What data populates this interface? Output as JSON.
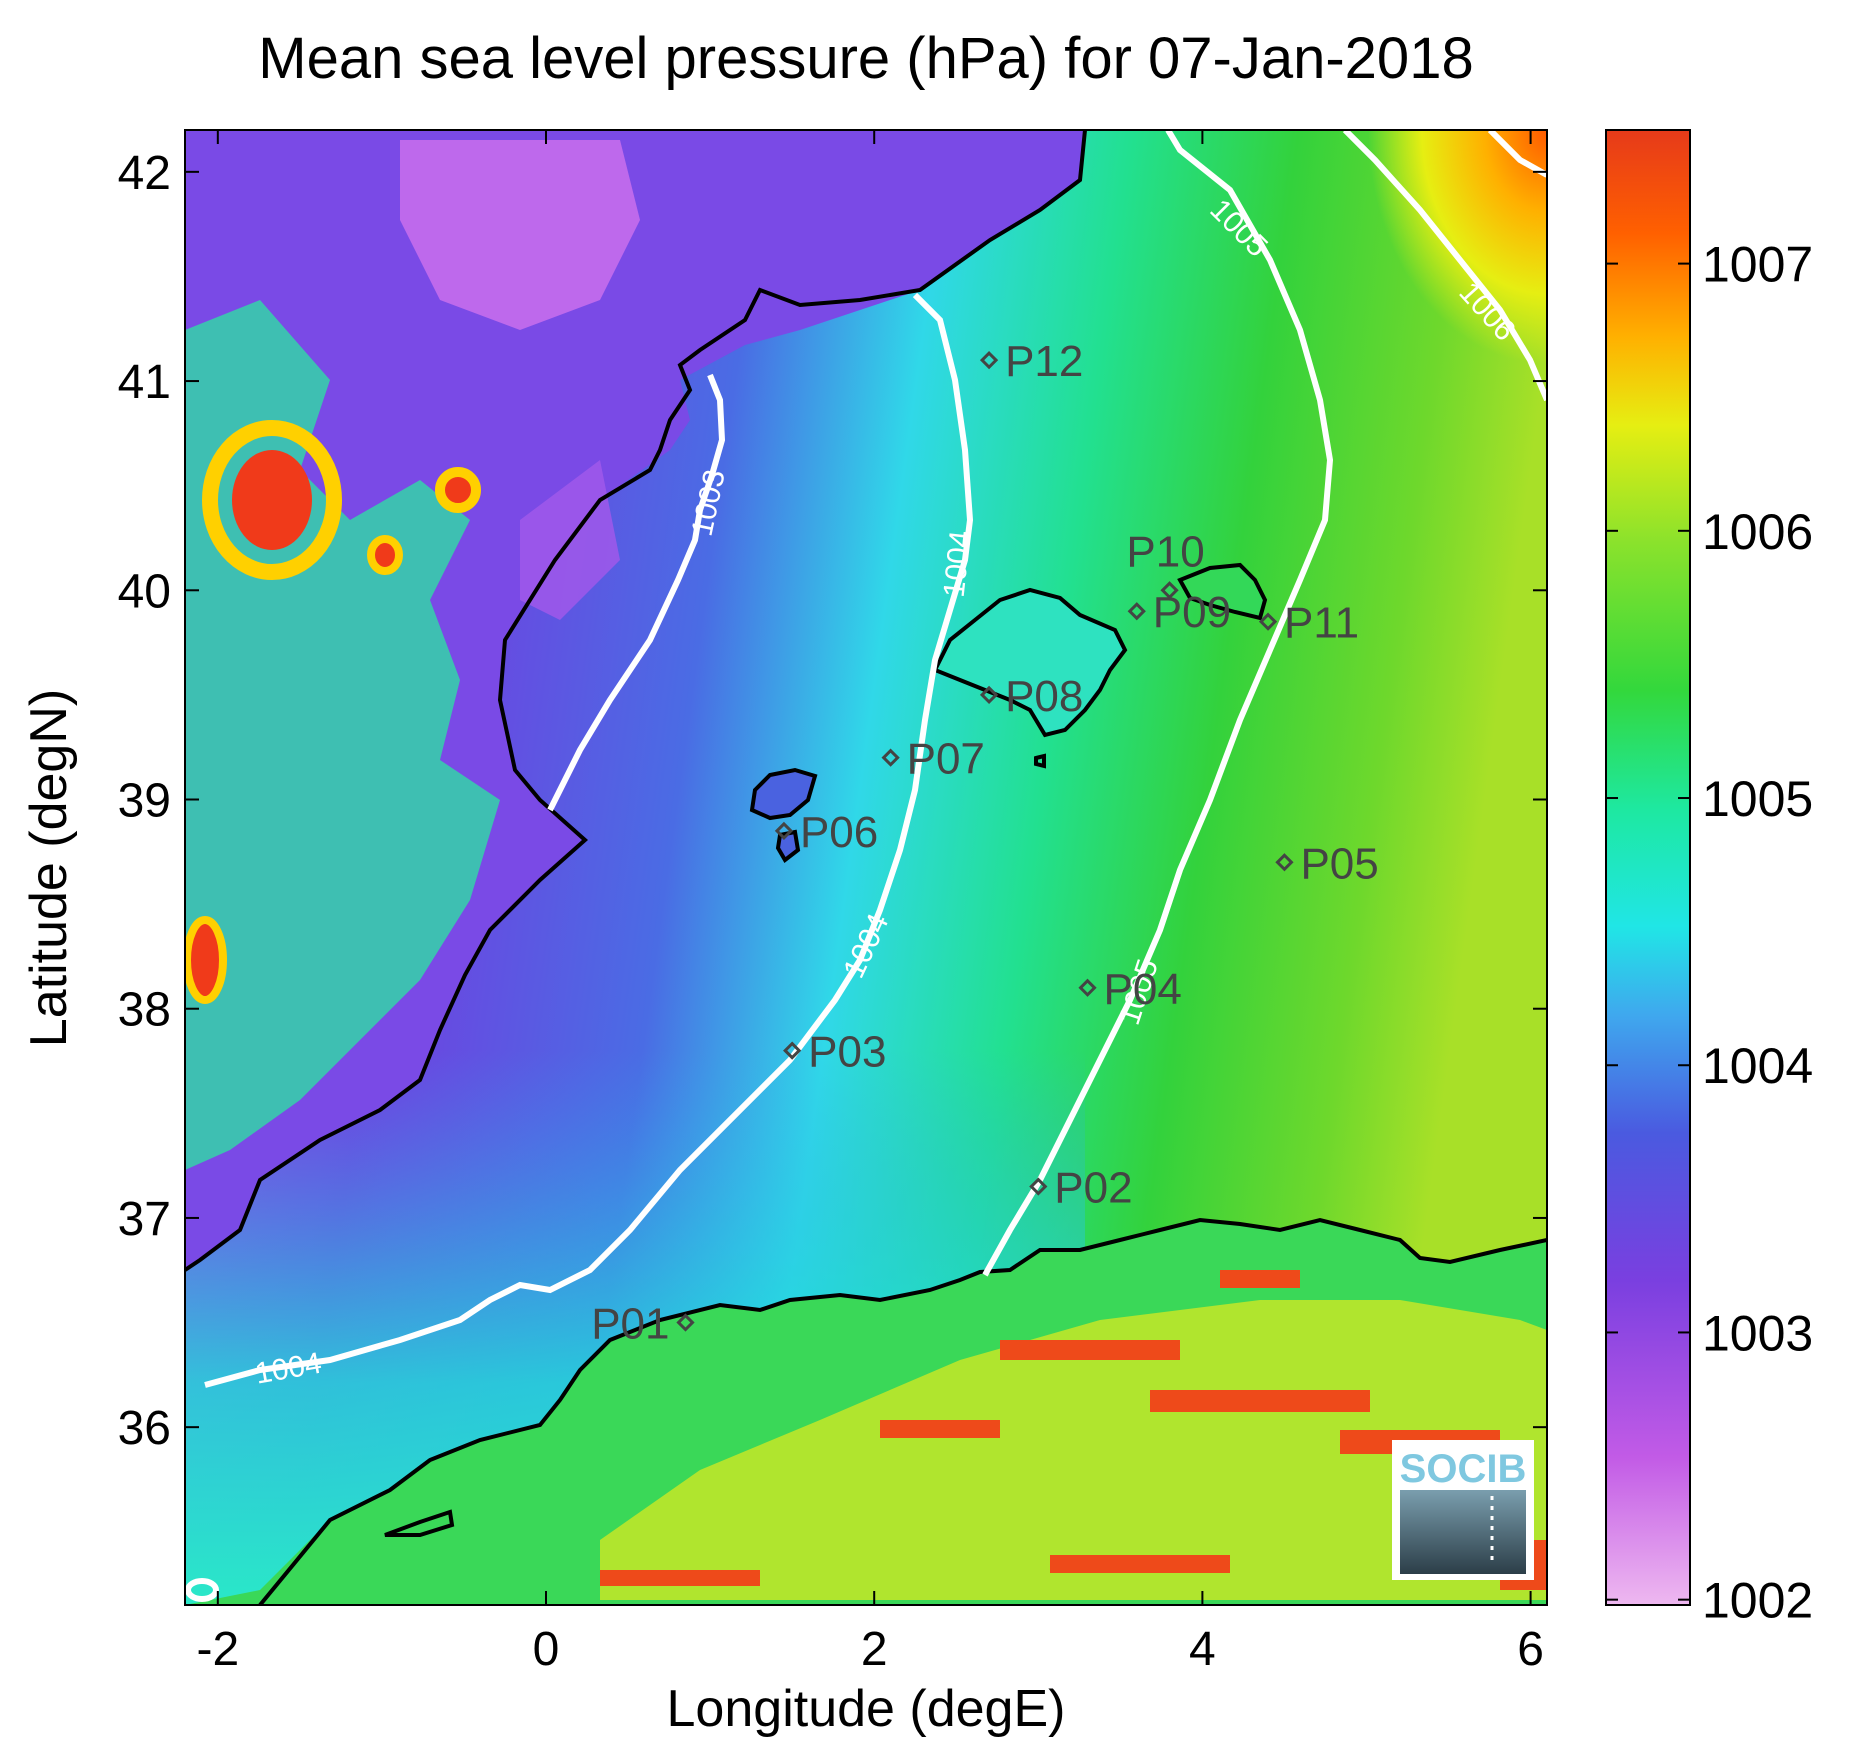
{
  "chart_data": {
    "type": "heatmap",
    "title": "Mean sea level pressure (hPa) for 07-Jan-2018",
    "xlabel": "Longitude (degE)",
    "ylabel": "Latitude (degN)",
    "xlim": [
      -2.2,
      6.1
    ],
    "ylim": [
      35.15,
      42.2
    ],
    "xticks": [
      -2,
      0,
      2,
      4,
      6
    ],
    "yticks": [
      36,
      37,
      38,
      39,
      40,
      41,
      42
    ],
    "colorbar": {
      "range": [
        1001.98,
        1007.5
      ],
      "ticks": [
        1002,
        1003,
        1004,
        1005,
        1006,
        1007
      ],
      "colors": [
        "#eeb8f0",
        "#c25be6",
        "#7a3fe0",
        "#4a5ae0",
        "#3fa8ee",
        "#20e6e6",
        "#1ee8a0",
        "#33d83c",
        "#8ae22c",
        "#e6ee12",
        "#ffb000",
        "#ff6000",
        "#e63a1a"
      ]
    },
    "stations": [
      {
        "name": "P01",
        "lon": 0.85,
        "lat": 36.5
      },
      {
        "name": "P02",
        "lon": 3.0,
        "lat": 37.15
      },
      {
        "name": "P03",
        "lon": 1.5,
        "lat": 37.8
      },
      {
        "name": "P04",
        "lon": 3.3,
        "lat": 38.1
      },
      {
        "name": "P05",
        "lon": 4.5,
        "lat": 38.7
      },
      {
        "name": "P06",
        "lon": 1.45,
        "lat": 38.85
      },
      {
        "name": "P07",
        "lon": 2.1,
        "lat": 39.2
      },
      {
        "name": "P08",
        "lon": 2.7,
        "lat": 39.5
      },
      {
        "name": "P09",
        "lon": 3.6,
        "lat": 39.9
      },
      {
        "name": "P10",
        "lon": 3.8,
        "lat": 40.0
      },
      {
        "name": "P11",
        "lon": 4.4,
        "lat": 39.85
      },
      {
        "name": "P12",
        "lon": 2.7,
        "lat": 41.1
      }
    ],
    "contours": [
      {
        "level": 1003,
        "label": "1003"
      },
      {
        "level": 1004,
        "label": "1004"
      },
      {
        "level": 1004,
        "label": "1004"
      },
      {
        "level": 1004,
        "label": "1004"
      },
      {
        "level": 1005,
        "label": "1005"
      },
      {
        "level": 1005,
        "label": "1005"
      },
      {
        "level": 1006,
        "label": "1006"
      }
    ]
  },
  "logo": {
    "text": "SOCIB"
  }
}
